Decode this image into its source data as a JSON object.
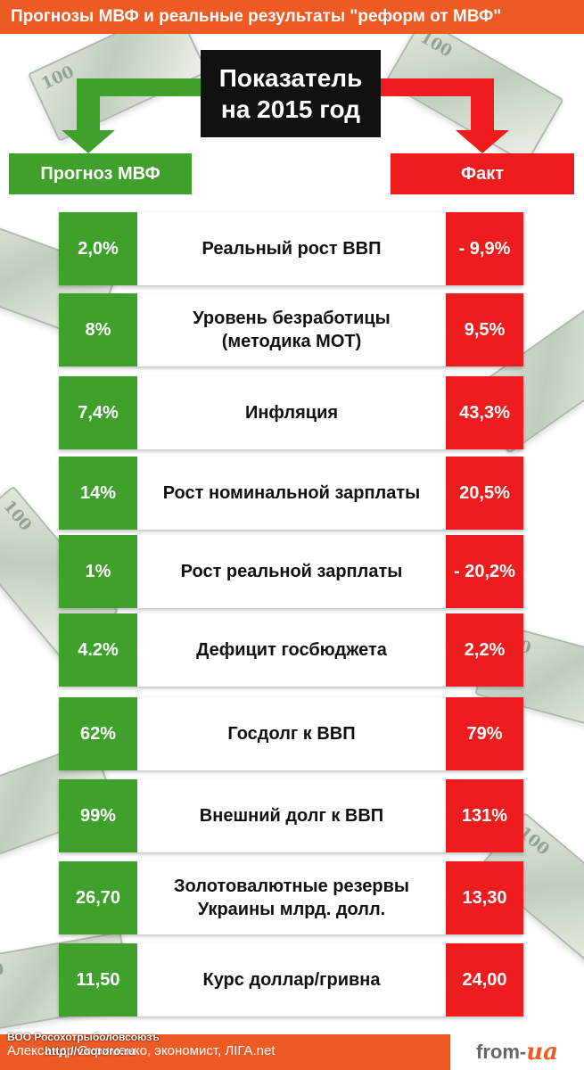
{
  "header": {
    "title": "Прогнозы МВФ и реальные результаты \"реформ от МВФ\""
  },
  "center_box": {
    "line1": "Показатель",
    "line2": "на 2015 год"
  },
  "columns": {
    "forecast_label": "Прогноз МВФ",
    "fact_label": "Факт"
  },
  "colors": {
    "green": "#3fa02c",
    "red": "#ee1c1c",
    "orange": "#ee5a24"
  },
  "rows": [
    {
      "forecast": "2,0%",
      "indicator": "Реальный рост ВВП",
      "fact": "- 9,9%"
    },
    {
      "forecast": "8%",
      "indicator": "Уровень безработицы\n(методика МОТ)",
      "fact": "9,5%"
    },
    {
      "forecast": "7,4%",
      "indicator": "Инфляция",
      "fact": "43,3%"
    },
    {
      "forecast": "14%",
      "indicator": "Рост номинальной зарплаты",
      "fact": "20,5%"
    },
    {
      "forecast": "1%",
      "indicator": "Рост реальной зарплаты",
      "fact": "- 20,2%"
    },
    {
      "forecast": "4.2%",
      "indicator": "Дефицит госбюджета",
      "fact": "2,2%"
    },
    {
      "forecast": "62%",
      "indicator": "Госдолг к ВВП",
      "fact": "79%"
    },
    {
      "forecast": "99%",
      "indicator": "Внешний долг к ВВП",
      "fact": "131%"
    },
    {
      "forecast": "26,70",
      "indicator": "Золотовалютные резервы\nУкраины млрд. долл.",
      "fact": "13,30"
    },
    {
      "forecast": "11,50",
      "indicator": "Курс доллар/гривна",
      "fact": "24,00"
    }
  ],
  "footer": {
    "org": "ВОО Росохотрыболовсоюзъ",
    "author": "Александр Охрименко, экономист, ЛІГА.net",
    "url": "http://voororo.ru",
    "logo_prefix": "from-",
    "logo_accent": "ua"
  }
}
